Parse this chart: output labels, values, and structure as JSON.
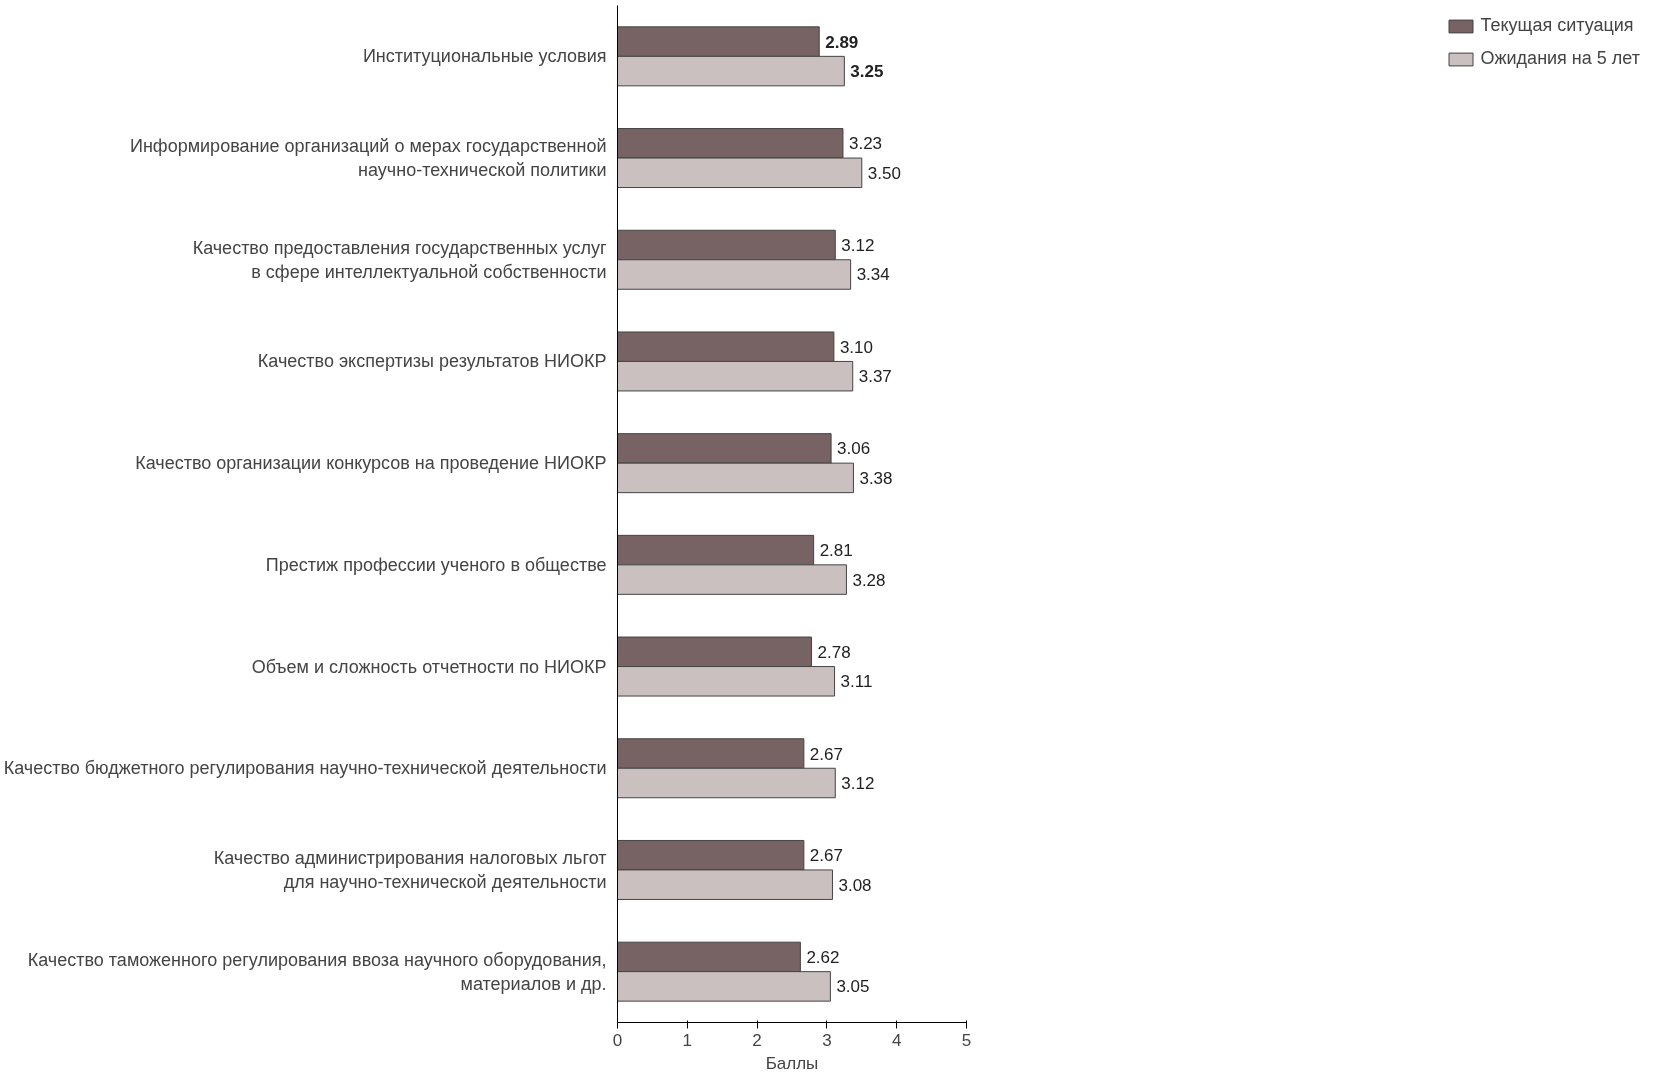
{
  "chart_data": {
    "type": "bar",
    "orientation": "horizontal",
    "xlabel": "Баллы",
    "categories": [
      "Институциональные условия",
      "Информирование организаций о мерах государственной\nнаучно-технической политики",
      "Качество предоставления государственных услуг\nв сфере интеллектуальной собственности",
      "Качество экспертизы результатов НИОКР",
      "Качество организации конкурсов на проведение НИОКР",
      "Престиж профессии ученого в обществе",
      "Объем и сложность отчетности по НИОКР",
      "Качество бюджетного регулирования научно-технической деятельности",
      "Качество администрирования налоговых льгот\nдля научно-технической деятельности",
      "Качество таможенного регулирования ввоза научного оборудования,\nматериалов и др."
    ],
    "series": [
      {
        "name": "Текущая ситуация",
        "color": "#776264",
        "values": [
          2.89,
          3.23,
          3.12,
          3.1,
          3.06,
          2.81,
          2.78,
          2.67,
          2.67,
          2.62
        ],
        "value_labels": [
          "2.89",
          "3.23",
          "3.12",
          "3.10",
          "3.06",
          "2.81",
          "2.78",
          "2.67",
          "2.67",
          "2.62"
        ]
      },
      {
        "name": "Ожидания на 5 лет",
        "color": "#cbc0c0",
        "values": [
          3.25,
          3.5,
          3.34,
          3.37,
          3.38,
          3.28,
          3.11,
          3.12,
          3.08,
          3.05
        ],
        "value_labels": [
          "3.25",
          "3.50",
          "3.34",
          "3.37",
          "3.38",
          "3.28",
          "3.11",
          "3.12",
          "3.08",
          "3.05"
        ]
      }
    ],
    "xlim": [
      0,
      5
    ],
    "xticks": [
      0,
      1,
      2,
      3,
      4,
      5
    ],
    "grid": false,
    "legend": "right"
  }
}
